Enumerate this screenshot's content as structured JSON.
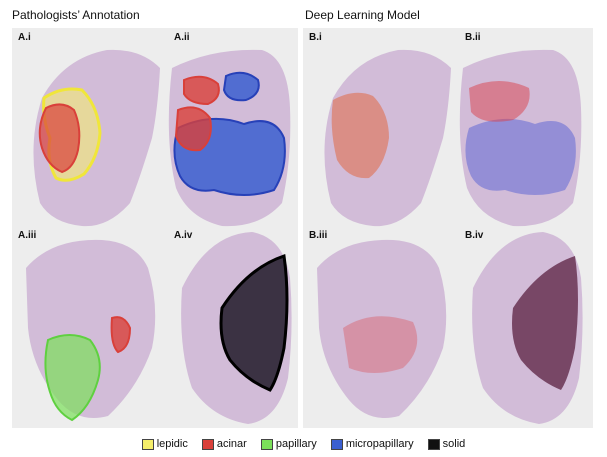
{
  "titles": {
    "left": "Pathologists’ Annotation",
    "right": "Deep Learning Model"
  },
  "panels": {
    "ai": "A.i",
    "aii": "A.ii",
    "aiii": "A.iii",
    "aiv": "A.iv",
    "bi": "B.i",
    "bii": "B.ii",
    "biii": "B.iii",
    "biv": "B.iv"
  },
  "legend": [
    {
      "label": "lepidic",
      "color": "#f5ee6a"
    },
    {
      "label": "acinar",
      "color": "#d9403a"
    },
    {
      "label": "papillary",
      "color": "#7be05a"
    },
    {
      "label": "micropapillary",
      "color": "#3b5fd0"
    },
    {
      "label": "solid",
      "color": "#111111"
    }
  ]
}
